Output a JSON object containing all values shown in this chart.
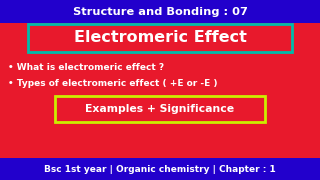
{
  "bg_color": "#e8192c",
  "top_bar_color": "#2200cc",
  "bottom_bar_color": "#2200cc",
  "top_text": "Structure and Bonding : 07",
  "top_text_color": "#ffffff",
  "main_title": "Electromeric Effect",
  "main_title_color": "#ffffff",
  "main_box_edge_color": "#00bbaa",
  "bullet1": "• What is electromeric effect ?",
  "bullet2": "• Types of electromeric effect ( +E or -E )",
  "bullet_color": "#ffffff",
  "sub_box_text": "Examples + Significance",
  "sub_box_text_color": "#ffffff",
  "sub_box_edge_color": "#ccee00",
  "bottom_text": "Bsc 1st year | Organic chemistry | Chapter : 1",
  "bottom_text_color": "#ffffff",
  "fig_width": 3.2,
  "fig_height": 1.8,
  "dpi": 100
}
